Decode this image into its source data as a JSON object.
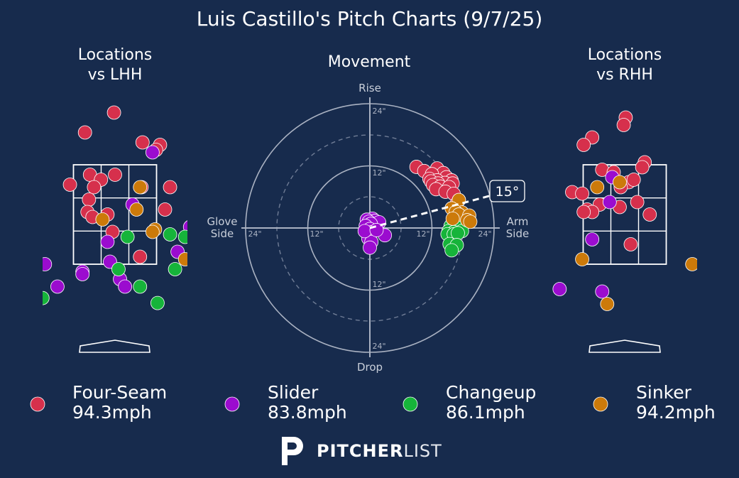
{
  "title": "Luis Castillo's Pitch Charts (9/7/25)",
  "panels": {
    "lhh_title": [
      "Locations",
      "vs LHH"
    ],
    "movement_title": "Movement",
    "rhh_title": [
      "Locations",
      "vs RHH"
    ]
  },
  "movement_labels": {
    "top": "Rise",
    "bottom": "Drop",
    "left": [
      "Glove",
      "Side"
    ],
    "right": [
      "Arm",
      "Side"
    ],
    "ring_12": "12\"",
    "ring_24": "24\"",
    "arm_angle": "15°"
  },
  "colors": {
    "background": "#172b4d",
    "Four-Seam": "#d6304c",
    "Slider": "#9b0ccf",
    "Changeup": "#16b43a",
    "Sinker": "#cc7a0a"
  },
  "legend": [
    {
      "pitch": "Four-Seam",
      "velocity": "94.3mph"
    },
    {
      "pitch": "Slider",
      "velocity": "83.8mph"
    },
    {
      "pitch": "Changeup",
      "velocity": "86.1mph"
    },
    {
      "pitch": "Sinker",
      "velocity": "94.2mph"
    }
  ],
  "logo": {
    "bold": "PITCHER",
    "light": "LIST"
  },
  "chart_data": [
    {
      "type": "scatter",
      "name": "Locations vs LHH",
      "x_range": [
        -1.4,
        1.4
      ],
      "y_range": [
        0.5,
        4.8
      ],
      "strike_zone": {
        "x": [
          -0.83,
          0.83
        ],
        "y": [
          1.5,
          3.5
        ]
      },
      "series": [
        {
          "name": "Four-Seam",
          "points": [
            [
              -0.02,
              4.55
            ],
            [
              -0.6,
              4.15
            ],
            [
              0.55,
              3.95
            ],
            [
              0.9,
              3.9
            ],
            [
              0.82,
              3.8
            ],
            [
              -0.5,
              3.3
            ],
            [
              -0.28,
              3.2
            ],
            [
              0.0,
              3.3
            ],
            [
              -0.9,
              3.1
            ],
            [
              -0.42,
              3.05
            ],
            [
              0.53,
              3.05
            ],
            [
              1.1,
              3.05
            ],
            [
              -0.52,
              2.8
            ],
            [
              -0.55,
              2.55
            ],
            [
              -0.45,
              2.45
            ],
            [
              -0.15,
              2.5
            ],
            [
              1.0,
              2.6
            ],
            [
              -0.05,
              2.15
            ],
            [
              0.5,
              1.65
            ]
          ]
        },
        {
          "name": "Slider",
          "points": [
            [
              0.75,
              3.75
            ],
            [
              0.35,
              2.7
            ],
            [
              1.5,
              2.25
            ],
            [
              -0.15,
              1.95
            ],
            [
              1.25,
              1.75
            ],
            [
              -1.4,
              1.5
            ],
            [
              -0.1,
              1.55
            ],
            [
              -0.65,
              1.35
            ],
            [
              0.1,
              1.2
            ],
            [
              -0.65,
              1.3
            ],
            [
              0.2,
              1.05
            ],
            [
              -1.15,
              1.05
            ]
          ]
        },
        {
          "name": "Changeup",
          "points": [
            [
              1.1,
              2.1
            ],
            [
              1.4,
              2.05
            ],
            [
              0.25,
              2.05
            ],
            [
              0.07,
              1.4
            ],
            [
              1.2,
              1.4
            ],
            [
              0.5,
              1.05
            ],
            [
              -1.45,
              0.82
            ],
            [
              0.85,
              0.72
            ]
          ]
        },
        {
          "name": "Sinker",
          "points": [
            [
              0.5,
              3.05
            ],
            [
              0.43,
              2.6
            ],
            [
              -0.25,
              2.4
            ],
            [
              0.8,
              2.2
            ],
            [
              0.75,
              2.15
            ],
            [
              1.4,
              1.6
            ]
          ]
        }
      ]
    },
    {
      "type": "scatter",
      "name": "Movement",
      "x_label": "Glove Side / Arm Side (inches)",
      "y_label": "Drop / Rise (inches)",
      "x_range": [
        -24,
        24
      ],
      "y_range": [
        -24,
        24
      ],
      "arm_angle_deg": 15,
      "series": [
        {
          "name": "Four-Seam",
          "points": [
            [
              9,
              11.8
            ],
            [
              13,
              11.5
            ],
            [
              10.5,
              11
            ],
            [
              14.2,
              10.6
            ],
            [
              12,
              10.4
            ],
            [
              14.8,
              9.8
            ],
            [
              11.5,
              9.5
            ],
            [
              13,
              9.2
            ],
            [
              15.8,
              9.2
            ],
            [
              11.8,
              9.0
            ],
            [
              14.5,
              8.7
            ],
            [
              13.2,
              8.6
            ],
            [
              16,
              8.6
            ],
            [
              12.2,
              8.3
            ],
            [
              13.6,
              8.0
            ],
            [
              15.3,
              7.9
            ],
            [
              12.8,
              7.5
            ],
            [
              14.6,
              7.0
            ],
            [
              16.2,
              6.6
            ],
            [
              17.2,
              5.4
            ],
            [
              16.8,
              4.7
            ]
          ]
        },
        {
          "name": "Slider",
          "points": [
            [
              0.5,
              1.8
            ],
            [
              1,
              1.4
            ],
            [
              -0.6,
              1.6
            ],
            [
              -0.2,
              1.2
            ],
            [
              1.8,
              1.1
            ],
            [
              0.2,
              0.8
            ],
            [
              -0.8,
              0.4
            ],
            [
              0,
              -0.2
            ],
            [
              0.4,
              -0.8
            ],
            [
              -0.4,
              -1.2
            ],
            [
              2.9,
              -1.4
            ],
            [
              -0.3,
              -2.0
            ],
            [
              0.3,
              -2.7
            ],
            [
              -1,
              -0.6
            ],
            [
              1.3,
              -0.4
            ],
            [
              0,
              -3.8
            ]
          ]
        },
        {
          "name": "Changeup",
          "points": [
            [
              16.5,
              1.6
            ],
            [
              17.2,
              1.1
            ],
            [
              15.6,
              0.4
            ],
            [
              17.2,
              0.1
            ],
            [
              15.2,
              -0.6
            ],
            [
              16.2,
              -0.8
            ],
            [
              17.8,
              -0.6
            ],
            [
              15.0,
              -1.2
            ],
            [
              16.2,
              -1.2
            ],
            [
              17.0,
              -1.0
            ],
            [
              15.4,
              -3.1
            ],
            [
              16.8,
              -3.3
            ],
            [
              15.8,
              -4.3
            ]
          ]
        },
        {
          "name": "Sinker",
          "points": [
            [
              17.2,
              5.4
            ],
            [
              15.8,
              3.8
            ],
            [
              17.8,
              3.0
            ],
            [
              16.6,
              3.1
            ],
            [
              17.2,
              2.6
            ],
            [
              19.2,
              2.4
            ],
            [
              16.0,
              1.8
            ],
            [
              18.8,
              1.5
            ],
            [
              19.4,
              1.2
            ]
          ]
        }
      ]
    },
    {
      "type": "scatter",
      "name": "Locations vs RHH",
      "x_range": [
        -1.4,
        1.4
      ],
      "y_range": [
        0.5,
        4.8
      ],
      "strike_zone": {
        "x": [
          -0.83,
          0.83
        ],
        "y": [
          1.5,
          3.5
        ]
      },
      "series": [
        {
          "name": "Four-Seam",
          "points": [
            [
              0.02,
              4.45
            ],
            [
              -0.02,
              4.3
            ],
            [
              -0.65,
              4.05
            ],
            [
              -0.82,
              3.9
            ],
            [
              0.4,
              3.55
            ],
            [
              0.35,
              3.45
            ],
            [
              -0.45,
              3.4
            ],
            [
              -0.22,
              3.35
            ],
            [
              0.08,
              3.15
            ],
            [
              0.18,
              3.2
            ],
            [
              -0.08,
              3.05
            ],
            [
              -1.05,
              2.95
            ],
            [
              -0.85,
              2.92
            ],
            [
              0.25,
              2.75
            ],
            [
              -0.5,
              2.7
            ],
            [
              -0.75,
              2.6
            ],
            [
              -0.65,
              2.55
            ],
            [
              -0.82,
              2.55
            ],
            [
              -0.1,
              2.65
            ],
            [
              0.5,
              2.5
            ],
            [
              0.12,
              1.9
            ]
          ]
        },
        {
          "name": "Slider",
          "points": [
            [
              -0.25,
              3.25
            ],
            [
              -0.3,
              2.75
            ],
            [
              -0.65,
              2.0
            ],
            [
              -1.3,
              1.0
            ],
            [
              -0.45,
              0.95
            ]
          ]
        },
        {
          "name": "Sinker",
          "points": [
            [
              -0.1,
              3.15
            ],
            [
              -0.55,
              3.05
            ],
            [
              -0.85,
              1.6
            ],
            [
              1.35,
              1.5
            ],
            [
              -0.35,
              0.7
            ]
          ]
        }
      ]
    }
  ]
}
